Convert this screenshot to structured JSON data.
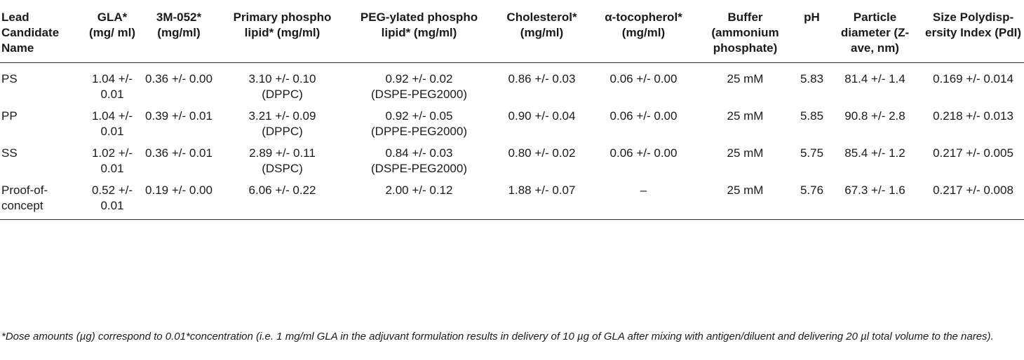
{
  "table": {
    "headers": [
      "Lead Candidate Name",
      "GLA* (mg/ ml)",
      "3M-052* (mg/ml)",
      "Primary phospho lipid* (mg/ml)",
      "PEG-ylated phospho lipid* (mg/ml)",
      "Cholesterol* (mg/ml)",
      "α-tocopherol* (mg/ml)",
      "Buffer (ammonium phosphate)",
      "pH",
      "Particle diameter (Z-ave, nm)",
      "Size Polydisp-ersity Index (PdI)"
    ],
    "rows": [
      {
        "name": "PS",
        "gla": "1.04 +/- 0.01",
        "m052": "0.36 +/- 0.00",
        "primary": "3.10 +/- 0.10",
        "primary_sub": "(DPPC)",
        "peg": "0.92 +/- 0.02",
        "peg_sub": "(DSPE-PEG2000)",
        "chol": "0.86 +/- 0.03",
        "toco": "0.06 +/- 0.00",
        "buffer": "25 mM",
        "ph": "5.83",
        "diameter": "81.4 +/- 1.4",
        "pdi": "0.169 +/- 0.014"
      },
      {
        "name": "PP",
        "gla": "1.04 +/- 0.01",
        "m052": "0.39 +/- 0.01",
        "primary": "3.21 +/- 0.09",
        "primary_sub": "(DPPC)",
        "peg": "0.92 +/- 0.05",
        "peg_sub": "(DPPE-PEG2000)",
        "chol": "0.90 +/- 0.04",
        "toco": "0.06 +/- 0.00",
        "buffer": "25 mM",
        "ph": "5.85",
        "diameter": "90.8 +/- 2.8",
        "pdi": "0.218 +/- 0.013"
      },
      {
        "name": "SS",
        "gla": "1.02 +/- 0.01",
        "m052": "0.36 +/- 0.01",
        "primary": "2.89 +/- 0.11",
        "primary_sub": "(DSPC)",
        "peg": "0.84 +/- 0.03",
        "peg_sub": "(DSPE-PEG2000)",
        "chol": "0.80 +/- 0.02",
        "toco": "0.06 +/- 0.00",
        "buffer": "25 mM",
        "ph": "5.75",
        "diameter": "85.4 +/- 1.2",
        "pdi": "0.217 +/- 0.005"
      },
      {
        "name": "Proof-of-concept",
        "gla": "0.52 +/- 0.01",
        "m052": "0.19 +/- 0.00",
        "primary": "6.06 +/- 0.22",
        "primary_sub": "",
        "peg": "2.00 +/- 0.12",
        "peg_sub": "",
        "chol": "1.88 +/- 0.07",
        "toco": "–",
        "buffer": "25 mM",
        "ph": "5.76",
        "diameter": "67.3 +/- 1.6",
        "pdi": "0.217 +/- 0.008"
      }
    ]
  },
  "footnote": "*Dose amounts (µg) correspond to 0.01*concentration (i.e. 1 mg/ml GLA in the adjuvant formulation results in delivery of 10 µg of GLA after mixing with antigen/diluent and delivering 20 µl total volume to the nares)."
}
